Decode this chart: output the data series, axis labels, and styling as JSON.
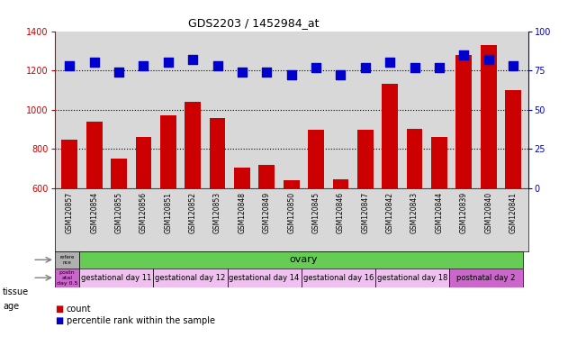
{
  "title": "GDS2203 / 1452984_at",
  "samples": [
    "GSM120857",
    "GSM120854",
    "GSM120855",
    "GSM120856",
    "GSM120851",
    "GSM120852",
    "GSM120853",
    "GSM120848",
    "GSM120849",
    "GSM120850",
    "GSM120845",
    "GSM120846",
    "GSM120847",
    "GSM120842",
    "GSM120843",
    "GSM120844",
    "GSM120839",
    "GSM120840",
    "GSM120841"
  ],
  "counts": [
    850,
    940,
    750,
    860,
    970,
    1040,
    960,
    705,
    720,
    640,
    900,
    648,
    900,
    1130,
    905,
    862,
    1280,
    1330,
    1100
  ],
  "percentiles": [
    78,
    80,
    74,
    78,
    80,
    82,
    78,
    74,
    74,
    72,
    77,
    72,
    77,
    80,
    77,
    77,
    85,
    82,
    78
  ],
  "ylim_left": [
    600,
    1400
  ],
  "ylim_right": [
    0,
    100
  ],
  "yticks_left": [
    600,
    800,
    1000,
    1200,
    1400
  ],
  "yticks_right": [
    0,
    25,
    50,
    75,
    100
  ],
  "bar_color": "#cc0000",
  "dot_color": "#0000cc",
  "grid_color": "#000000",
  "tissue_row": {
    "ref_label": "refere\nnce",
    "ref_color": "#b0b0b0",
    "tissue_label": "ovary",
    "tissue_color": "#66cc55"
  },
  "age_groups": [
    {
      "label": "postn\natal\nday 0.5",
      "color": "#cc66cc",
      "span": 1
    },
    {
      "label": "gestational day 11",
      "color": "#f0c0f0",
      "span": 3
    },
    {
      "label": "gestational day 12",
      "color": "#f0c0f0",
      "span": 3
    },
    {
      "label": "gestational day 14",
      "color": "#f0c0f0",
      "span": 3
    },
    {
      "label": "gestational day 16",
      "color": "#f0c0f0",
      "span": 3
    },
    {
      "label": "gestational day 18",
      "color": "#f0c0f0",
      "span": 3
    },
    {
      "label": "postnatal day 2",
      "color": "#cc66cc",
      "span": 3
    }
  ],
  "legend_count_color": "#cc0000",
  "legend_pct_color": "#0000cc",
  "bar_width": 0.65,
  "dot_size": 45,
  "background_color": "#ffffff",
  "plot_bg_color": "#d8d8d8",
  "axis_color_left": "#cc0000",
  "axis_color_right": "#0000cc"
}
